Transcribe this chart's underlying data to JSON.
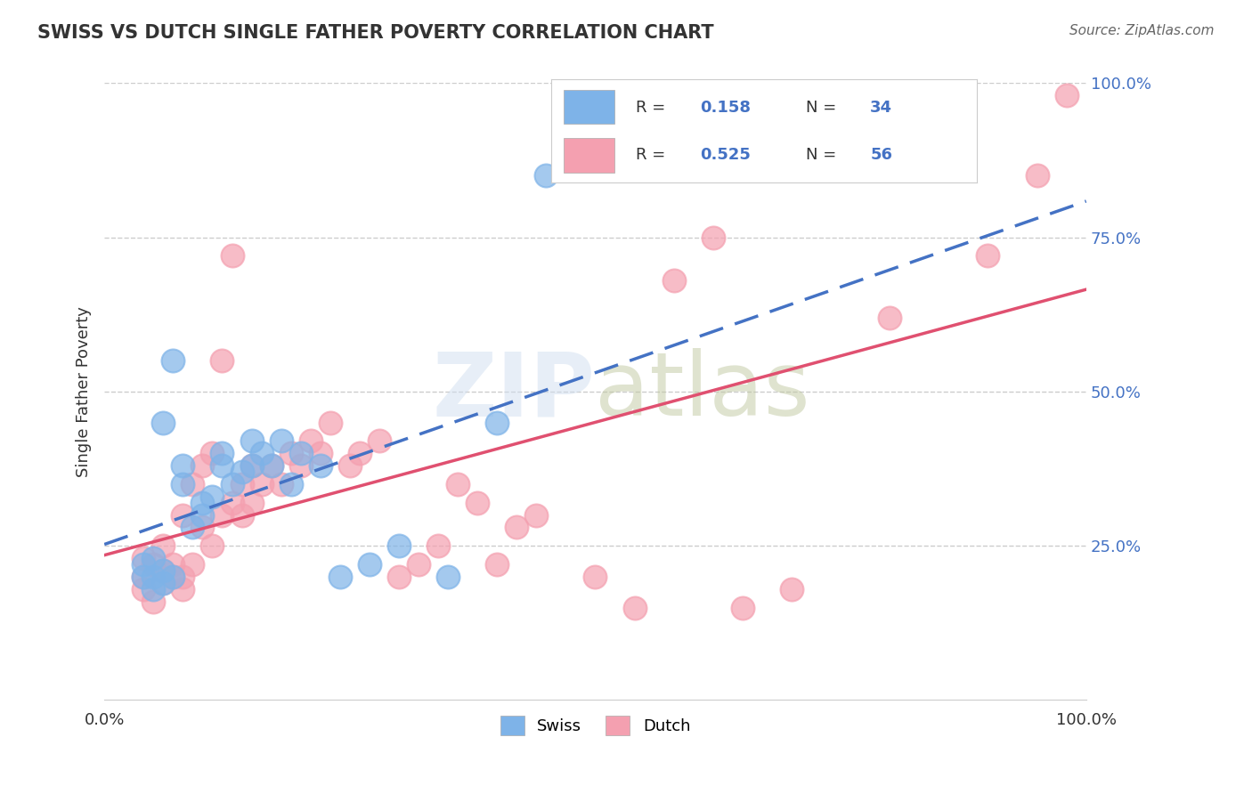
{
  "title": "SWISS VS DUTCH SINGLE FATHER POVERTY CORRELATION CHART",
  "source": "Source: ZipAtlas.com",
  "xlabel": "",
  "ylabel": "Single Father Poverty",
  "xlim": [
    0,
    1
  ],
  "ylim": [
    0,
    1
  ],
  "xtick_labels": [
    "0.0%",
    "100.0%"
  ],
  "ytick_labels_right": [
    "25.0%",
    "50.0%",
    "75.0%",
    "100.0%"
  ],
  "legend_swiss_R": "0.158",
  "legend_swiss_N": "34",
  "legend_dutch_R": "0.525",
  "legend_dutch_N": "56",
  "swiss_color": "#7EB3E8",
  "dutch_color": "#F4A0B0",
  "swiss_line_color": "#4472C4",
  "dutch_line_color": "#E05070",
  "watermark": "ZIPatlas",
  "background_color": "#FFFFFF",
  "swiss_scatter_x": [
    0.04,
    0.04,
    0.05,
    0.05,
    0.05,
    0.06,
    0.06,
    0.06,
    0.07,
    0.07,
    0.08,
    0.08,
    0.09,
    0.1,
    0.1,
    0.11,
    0.12,
    0.12,
    0.13,
    0.14,
    0.15,
    0.15,
    0.16,
    0.17,
    0.18,
    0.19,
    0.2,
    0.22,
    0.24,
    0.27,
    0.3,
    0.35,
    0.4,
    0.45
  ],
  "swiss_scatter_y": [
    0.2,
    0.22,
    0.18,
    0.2,
    0.23,
    0.19,
    0.21,
    0.45,
    0.2,
    0.55,
    0.35,
    0.38,
    0.28,
    0.3,
    0.32,
    0.33,
    0.38,
    0.4,
    0.35,
    0.37,
    0.38,
    0.42,
    0.4,
    0.38,
    0.42,
    0.35,
    0.4,
    0.38,
    0.2,
    0.22,
    0.25,
    0.2,
    0.45,
    0.85
  ],
  "dutch_scatter_x": [
    0.04,
    0.04,
    0.04,
    0.05,
    0.05,
    0.06,
    0.06,
    0.06,
    0.07,
    0.07,
    0.08,
    0.08,
    0.08,
    0.09,
    0.09,
    0.1,
    0.1,
    0.11,
    0.11,
    0.12,
    0.12,
    0.13,
    0.13,
    0.14,
    0.14,
    0.15,
    0.15,
    0.16,
    0.17,
    0.18,
    0.19,
    0.2,
    0.21,
    0.22,
    0.23,
    0.25,
    0.26,
    0.28,
    0.3,
    0.32,
    0.34,
    0.36,
    0.38,
    0.4,
    0.42,
    0.44,
    0.5,
    0.54,
    0.58,
    0.62,
    0.65,
    0.7,
    0.8,
    0.9,
    0.95,
    0.98
  ],
  "dutch_scatter_y": [
    0.18,
    0.2,
    0.23,
    0.16,
    0.22,
    0.19,
    0.21,
    0.25,
    0.2,
    0.22,
    0.18,
    0.2,
    0.3,
    0.22,
    0.35,
    0.28,
    0.38,
    0.25,
    0.4,
    0.3,
    0.55,
    0.32,
    0.72,
    0.3,
    0.35,
    0.32,
    0.38,
    0.35,
    0.38,
    0.35,
    0.4,
    0.38,
    0.42,
    0.4,
    0.45,
    0.38,
    0.4,
    0.42,
    0.2,
    0.22,
    0.25,
    0.35,
    0.32,
    0.22,
    0.28,
    0.3,
    0.2,
    0.15,
    0.68,
    0.75,
    0.15,
    0.18,
    0.62,
    0.72,
    0.85,
    0.98
  ]
}
